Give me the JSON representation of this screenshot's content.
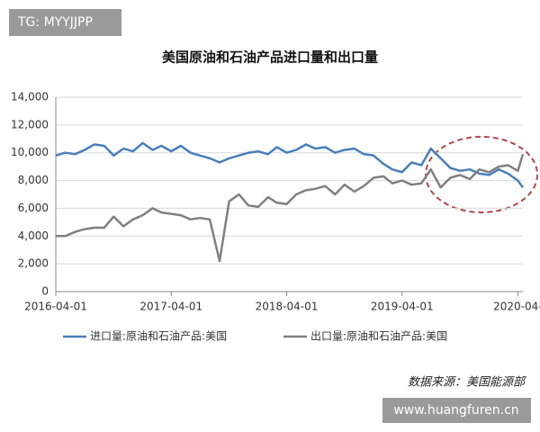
{
  "watermark": "TG: MYYJJPP",
  "chart_data": {
    "type": "line",
    "title": "美国原油和石油产品进口量和出口量",
    "x": [
      "2016-04-01",
      "2016-05-01",
      "2016-06-01",
      "2016-07-01",
      "2016-08-01",
      "2016-09-01",
      "2016-10-01",
      "2016-11-01",
      "2016-12-01",
      "2017-01-01",
      "2017-02-01",
      "2017-03-01",
      "2017-04-01",
      "2017-05-01",
      "2017-06-01",
      "2017-07-01",
      "2017-08-01",
      "2017-09-01",
      "2017-10-01",
      "2017-11-01",
      "2017-12-01",
      "2018-01-01",
      "2018-02-01",
      "2018-03-01",
      "2018-04-01",
      "2018-05-01",
      "2018-06-01",
      "2018-07-01",
      "2018-08-01",
      "2018-09-01",
      "2018-10-01",
      "2018-11-01",
      "2018-12-01",
      "2019-01-01",
      "2019-02-01",
      "2019-03-01",
      "2019-04-01",
      "2019-05-01",
      "2019-06-01",
      "2019-07-01",
      "2019-08-01",
      "2019-09-01",
      "2019-10-01",
      "2019-11-01",
      "2019-12-01",
      "2020-01-01",
      "2020-02-01",
      "2020-03-01",
      "2020-04-01",
      "2020-04-17"
    ],
    "series": [
      {
        "name": "进口量:原油和石油产品:美国",
        "color": "#4a7ebb",
        "values": [
          9800,
          10000,
          9900,
          10200,
          10600,
          10500,
          9800,
          10300,
          10100,
          10700,
          10200,
          10500,
          10100,
          10500,
          10000,
          9800,
          9600,
          9300,
          9600,
          9800,
          10000,
          10100,
          9900,
          10400,
          10000,
          10200,
          10600,
          10300,
          10400,
          10000,
          10200,
          10300,
          9900,
          9800,
          9200,
          8800,
          8600,
          9300,
          9100,
          10300,
          9600,
          8900,
          8700,
          8800,
          8500,
          8400,
          8800,
          8500,
          8000,
          7500
        ]
      },
      {
        "name": "出口量:原油和石油产品:美国",
        "color": "#808080",
        "values": [
          4000,
          4000,
          4300,
          4500,
          4600,
          4600,
          5400,
          4700,
          5200,
          5500,
          6000,
          5700,
          5600,
          5500,
          5200,
          5300,
          5200,
          2200,
          6500,
          7000,
          6200,
          6100,
          6800,
          6400,
          6300,
          7000,
          7300,
          7400,
          7600,
          7000,
          7700,
          7200,
          7600,
          8200,
          8300,
          7800,
          8000,
          7700,
          7800,
          8800,
          7500,
          8200,
          8400,
          8100,
          8800,
          8600,
          9000,
          9100,
          8700,
          9900
        ]
      }
    ],
    "xlim": [
      "2016-04-01",
      "2020-04-17"
    ],
    "xticks": [
      "2016-04-01",
      "2017-04-01",
      "2018-04-01",
      "2019-04-01",
      {
        "value": "2020-04-01",
        "label": "2020-04-"
      }
    ],
    "ylim": [
      0,
      14000
    ],
    "yticks": [
      0,
      {
        "value": 2000,
        "label": "2,000"
      },
      {
        "value": 4000,
        "label": "4,000"
      },
      {
        "value": 6000,
        "label": "6,000"
      },
      {
        "value": 8000,
        "label": "8,000"
      },
      {
        "value": 10000,
        "label": "10,000"
      },
      {
        "value": 12000,
        "label": "12,000"
      },
      {
        "value": 14000,
        "label": "14,000"
      }
    ],
    "grid": true
  },
  "source": "数据来源：美国能源部",
  "website": "www.huangfuren.cn"
}
